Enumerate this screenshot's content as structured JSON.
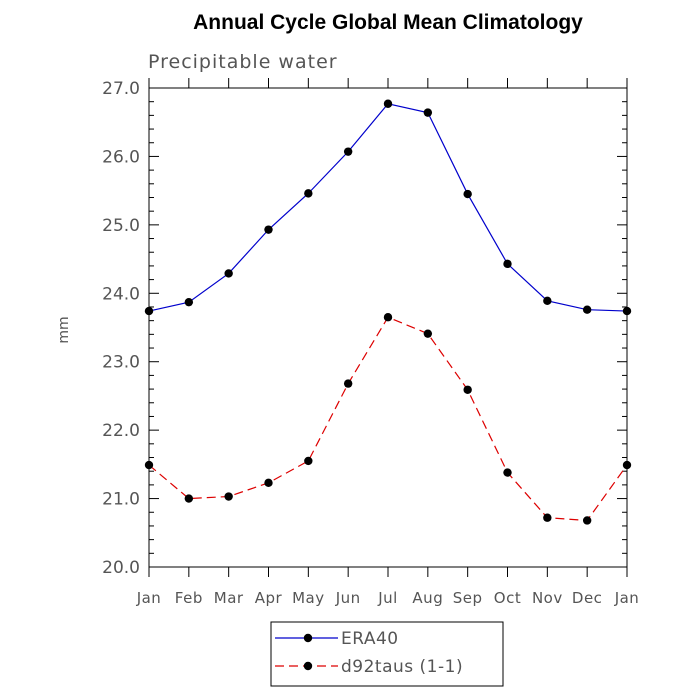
{
  "chart_data": {
    "type": "line",
    "title": "Annual Cycle Global Mean Climatology",
    "subtitle": "Precipitable water",
    "ylabel": "mm",
    "xlabel": "",
    "categories": [
      "Jan",
      "Feb",
      "Mar",
      "Apr",
      "May",
      "Jun",
      "Jul",
      "Aug",
      "Sep",
      "Oct",
      "Nov",
      "Dec",
      "Jan"
    ],
    "ylim": [
      20.0,
      27.0
    ],
    "yticks": [
      "20.0",
      "21.0",
      "22.0",
      "23.0",
      "24.0",
      "25.0",
      "26.0",
      "27.0"
    ],
    "grid": false,
    "legend_position": "bottom",
    "series": [
      {
        "name": "ERA40",
        "color": "#0000cc",
        "dash": "solid",
        "marker": "filled-circle",
        "values": [
          23.74,
          23.87,
          24.29,
          24.93,
          25.46,
          26.07,
          26.77,
          26.64,
          25.45,
          24.43,
          23.89,
          23.76,
          23.74
        ]
      },
      {
        "name": "d92taus (1-1)",
        "color": "#dd0000",
        "dash": "dashed",
        "marker": "filled-circle",
        "values": [
          21.49,
          21.0,
          21.03,
          21.23,
          21.55,
          22.68,
          23.65,
          23.41,
          22.59,
          21.38,
          20.72,
          20.68,
          21.49
        ]
      }
    ]
  }
}
